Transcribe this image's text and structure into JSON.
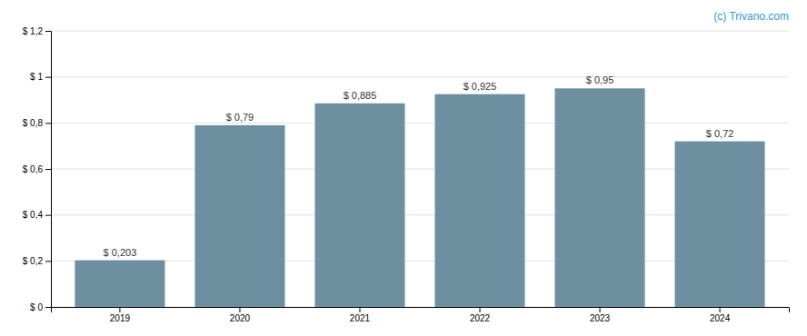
{
  "chart_data": {
    "type": "bar",
    "categories": [
      "2019",
      "2020",
      "2021",
      "2022",
      "2023",
      "2024"
    ],
    "values": [
      0.203,
      0.79,
      0.885,
      0.925,
      0.95,
      0.72
    ],
    "value_labels": [
      "$ 0,203",
      "$ 0,79",
      "$ 0,885",
      "$ 0,925",
      "$ 0,95",
      "$ 0,72"
    ],
    "data_labels": true,
    "color": "#6e8fa0",
    "ylim": [
      0,
      1.2
    ],
    "yticks": [
      {
        "value": 0,
        "label": "$ 0"
      },
      {
        "value": 0.2,
        "label": "$ 0,2"
      },
      {
        "value": 0.4,
        "label": "$ 0,4"
      },
      {
        "value": 0.6,
        "label": "$ 0,6"
      },
      {
        "value": 0.8,
        "label": "$ 0,8"
      },
      {
        "value": 1.0,
        "label": "$ 1"
      },
      {
        "value": 1.2,
        "label": "$ 1,2"
      }
    ],
    "grid": true,
    "annotations": [
      "(c) Trivano.com"
    ]
  }
}
